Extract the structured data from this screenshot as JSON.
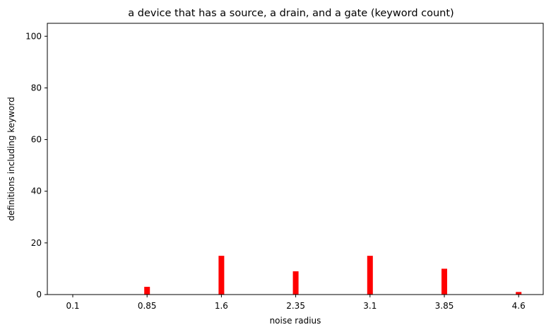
{
  "chart_data": {
    "type": "bar",
    "title": "a device that has a source, a drain, and a gate (keyword count)",
    "xlabel": "noise radius",
    "ylabel": "definitions including keyword",
    "categories": [
      "0.1",
      "0.85",
      "1.6",
      "2.35",
      "3.1",
      "3.85",
      "4.6"
    ],
    "values": [
      0,
      3,
      15,
      9,
      15,
      10,
      1
    ],
    "ylim": [
      0,
      105
    ],
    "yticks": [
      0,
      20,
      40,
      60,
      80,
      100
    ],
    "bar_color": "#ff0000",
    "grid": false,
    "legend": "none"
  }
}
